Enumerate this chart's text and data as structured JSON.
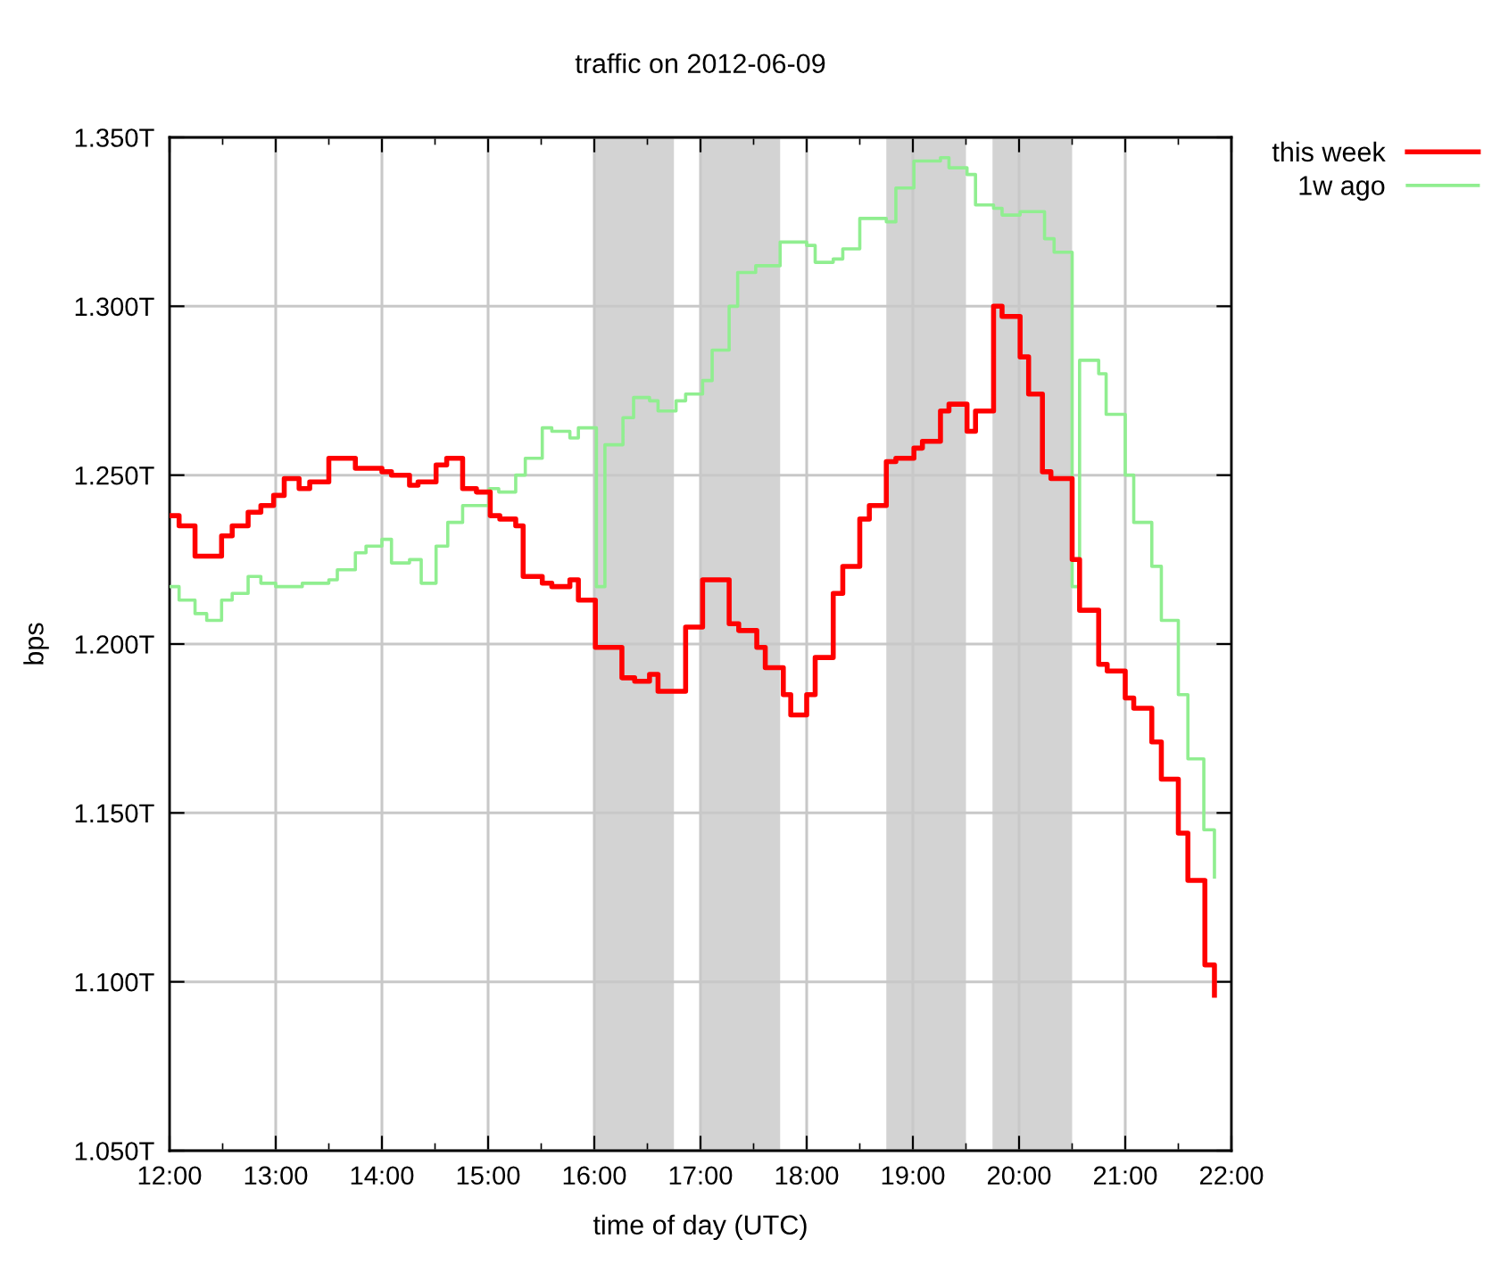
{
  "chart_data": {
    "type": "step",
    "title": "traffic on 2012-06-09",
    "xlabel": "time of day (UTC)",
    "ylabel": "bps",
    "xlim": [
      12,
      22
    ],
    "xticks": [
      {
        "value": 12,
        "label": "12:00"
      },
      {
        "value": 12.5,
        "label": null
      },
      {
        "value": 13,
        "label": "13:00"
      },
      {
        "value": 13.5,
        "label": null
      },
      {
        "value": 14,
        "label": "14:00"
      },
      {
        "value": 14.5,
        "label": null
      },
      {
        "value": 15,
        "label": "15:00"
      },
      {
        "value": 15.5,
        "label": null
      },
      {
        "value": 16,
        "label": "16:00"
      },
      {
        "value": 16.5,
        "label": null
      },
      {
        "value": 17,
        "label": "17:00"
      },
      {
        "value": 17.5,
        "label": null
      },
      {
        "value": 18,
        "label": "18:00"
      },
      {
        "value": 18.5,
        "label": null
      },
      {
        "value": 19,
        "label": "19:00"
      },
      {
        "value": 19.5,
        "label": null
      },
      {
        "value": 20,
        "label": "20:00"
      },
      {
        "value": 20.5,
        "label": null
      },
      {
        "value": 21,
        "label": "21:00"
      },
      {
        "value": 21.5,
        "label": null
      },
      {
        "value": 22,
        "label": "22:00"
      }
    ],
    "ylim": [
      1.05,
      1.35
    ],
    "yticks": [
      {
        "value": 1.05,
        "label": "1.050T"
      },
      {
        "value": 1.1,
        "label": "1.100T"
      },
      {
        "value": 1.15,
        "label": "1.150T"
      },
      {
        "value": 1.2,
        "label": "1.200T"
      },
      {
        "value": 1.25,
        "label": "1.250T"
      },
      {
        "value": 1.3,
        "label": "1.300T"
      },
      {
        "value": 1.35,
        "label": "1.350T"
      }
    ],
    "grid": true,
    "legend": "top right",
    "line_style": "solid",
    "bands": [
      {
        "axis": "x",
        "from": 16,
        "to": 16.75,
        "color": "#d3d3d3"
      },
      {
        "axis": "x",
        "from": 17,
        "to": 17.75,
        "color": "#d3d3d3"
      },
      {
        "axis": "x",
        "from": 18.75,
        "to": 19.5,
        "color": "#d3d3d3"
      },
      {
        "axis": "x",
        "from": 19.75,
        "to": 20.5,
        "color": "#d3d3d3"
      }
    ],
    "series": [
      {
        "name": "this week",
        "color": "#ff0000",
        "x": [
          12.0,
          12.09,
          12.24,
          12.49,
          12.59,
          12.74,
          12.86,
          12.98,
          13.08,
          13.22,
          13.32,
          13.5,
          13.75,
          14.0,
          14.09,
          14.26,
          14.34,
          14.51,
          14.61,
          14.76,
          14.89,
          15.02,
          15.11,
          15.26,
          15.33,
          15.51,
          15.6,
          15.77,
          15.85,
          16.01,
          16.26,
          16.38,
          16.52,
          16.6,
          16.86,
          17.02,
          17.27,
          17.36,
          17.53,
          17.61,
          17.78,
          17.85,
          18.0,
          18.08,
          18.25,
          18.34,
          18.5,
          18.59,
          18.75,
          18.84,
          19.01,
          19.09,
          19.26,
          19.34,
          19.51,
          19.59,
          19.76,
          19.84,
          20.01,
          20.09,
          20.22,
          20.3,
          20.5,
          20.57,
          20.75,
          20.83,
          21.0,
          21.08,
          21.25,
          21.34,
          21.5,
          21.59,
          21.75,
          21.84
        ],
        "values": [
          1.238,
          1.235,
          1.226,
          1.232,
          1.235,
          1.239,
          1.241,
          1.244,
          1.249,
          1.246,
          1.248,
          1.255,
          1.252,
          1.251,
          1.25,
          1.247,
          1.248,
          1.253,
          1.255,
          1.246,
          1.245,
          1.238,
          1.237,
          1.235,
          1.22,
          1.218,
          1.217,
          1.219,
          1.213,
          1.199,
          1.19,
          1.189,
          1.191,
          1.186,
          1.205,
          1.219,
          1.206,
          1.204,
          1.199,
          1.193,
          1.185,
          1.179,
          1.185,
          1.196,
          1.215,
          1.223,
          1.237,
          1.241,
          1.254,
          1.255,
          1.258,
          1.26,
          1.269,
          1.271,
          1.263,
          1.269,
          1.3,
          1.297,
          1.285,
          1.274,
          1.251,
          1.249,
          1.225,
          1.21,
          1.194,
          1.192,
          1.184,
          1.181,
          1.171,
          1.16,
          1.144,
          1.13,
          1.105,
          1.096
        ]
      },
      {
        "name": "1w ago",
        "color": "#90ee90",
        "x": [
          12.0,
          12.09,
          12.24,
          12.35,
          12.49,
          12.59,
          12.74,
          12.86,
          13.0,
          13.25,
          13.5,
          13.58,
          13.75,
          13.85,
          14.0,
          14.09,
          14.26,
          14.37,
          14.51,
          14.62,
          14.76,
          15.01,
          15.1,
          15.26,
          15.35,
          15.51,
          15.6,
          15.77,
          15.85,
          16.02,
          16.1,
          16.27,
          16.37,
          16.52,
          16.6,
          16.77,
          16.86,
          17.02,
          17.11,
          17.27,
          17.35,
          17.52,
          17.75,
          18.0,
          18.08,
          18.25,
          18.34,
          18.5,
          18.75,
          18.84,
          19.01,
          19.26,
          19.34,
          19.51,
          19.59,
          19.76,
          19.84,
          20.01,
          20.24,
          20.33,
          20.5,
          20.57,
          20.75,
          20.82,
          21.0,
          21.08,
          21.25,
          21.34,
          21.5,
          21.59,
          21.74,
          21.84
        ],
        "values": [
          1.217,
          1.213,
          1.209,
          1.207,
          1.213,
          1.215,
          1.22,
          1.218,
          1.217,
          1.218,
          1.219,
          1.222,
          1.227,
          1.229,
          1.231,
          1.224,
          1.225,
          1.218,
          1.229,
          1.236,
          1.241,
          1.246,
          1.245,
          1.25,
          1.255,
          1.264,
          1.263,
          1.261,
          1.264,
          1.217,
          1.259,
          1.267,
          1.273,
          1.272,
          1.269,
          1.272,
          1.274,
          1.278,
          1.287,
          1.3,
          1.31,
          1.312,
          1.319,
          1.318,
          1.313,
          1.314,
          1.317,
          1.326,
          1.325,
          1.335,
          1.343,
          1.344,
          1.341,
          1.339,
          1.33,
          1.329,
          1.327,
          1.328,
          1.32,
          1.316,
          1.217,
          1.284,
          1.28,
          1.268,
          1.25,
          1.236,
          1.223,
          1.207,
          1.185,
          1.166,
          1.145,
          1.131
        ]
      }
    ]
  }
}
